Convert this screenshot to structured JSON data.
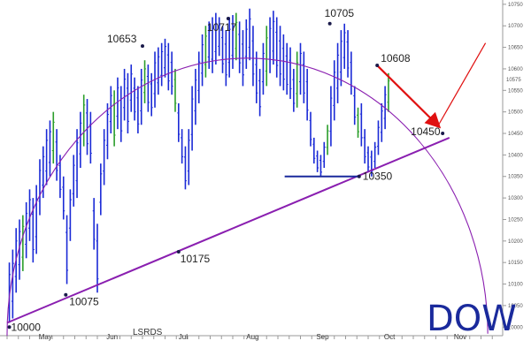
{
  "chart_data": {
    "type": "bar",
    "title": "DOW",
    "source_label": "LSRDS",
    "x_months": [
      "May",
      "Jun",
      "Jul",
      "Aug",
      "Sep",
      "Oct",
      "Nov"
    ],
    "ylim": [
      9980,
      10760
    ],
    "y_ticks": [
      10000,
      10050,
      10100,
      10150,
      10200,
      10250,
      10300,
      10350,
      10400,
      10450,
      10500,
      10550,
      10600,
      10650,
      10700,
      10750
    ],
    "last_price": 10575,
    "annotations": [
      {
        "text": "10000",
        "day": 1,
        "value": 10000
      },
      {
        "text": "10075",
        "day": 26,
        "value": 10075
      },
      {
        "text": "10175",
        "day": 76,
        "value": 10175
      },
      {
        "text": "10653",
        "day": 60,
        "value": 10653
      },
      {
        "text": "10717",
        "day": 98,
        "value": 10717
      },
      {
        "text": "10705",
        "day": 143,
        "value": 10705
      },
      {
        "text": "10608",
        "day": 164,
        "value": 10608
      },
      {
        "text": "10450",
        "day": 193,
        "value": 10450
      },
      {
        "text": "10350",
        "day": 156,
        "value": 10350
      }
    ],
    "support_trendline": {
      "from": {
        "day": 0,
        "value": 10010
      },
      "to": {
        "day": 196,
        "value": 10440
      }
    },
    "horizontal_support": {
      "from_day": 123,
      "to_day": 156,
      "value": 10350
    },
    "arc": {
      "start": {
        "day": 0,
        "value": 10185
      },
      "top": {
        "day": 104,
        "value": 10748
      },
      "end": {
        "day": 213,
        "value": 10190
      }
    },
    "projection": [
      {
        "day": 164,
        "value": 10608
      },
      {
        "day": 191,
        "value": 10468
      },
      {
        "day": 212,
        "value": 10660
      }
    ],
    "series": [
      {
        "name": "",
        "values": [
          [
            10010,
            10150
          ],
          [
            10020,
            10180
          ],
          [
            10080,
            10230
          ],
          [
            10110,
            10250
          ],
          [
            10130,
            10260
          ],
          [
            10160,
            10290
          ],
          [
            10200,
            10320
          ],
          [
            10150,
            10300
          ],
          [
            10170,
            10330
          ],
          [
            10260,
            10390
          ],
          [
            10300,
            10420
          ],
          [
            10330,
            10460
          ],
          [
            10350,
            10480
          ],
          [
            10380,
            10500
          ],
          [
            10340,
            10460
          ],
          [
            10300,
            10400
          ],
          [
            10250,
            10350
          ],
          [
            10100,
            10260
          ],
          [
            10200,
            10320
          ],
          [
            10280,
            10400
          ],
          [
            10300,
            10460
          ],
          [
            10370,
            10500
          ],
          [
            10420,
            10540
          ],
          [
            10400,
            10530
          ],
          [
            10380,
            10500
          ],
          [
            10180,
            10300
          ],
          [
            10080,
            10240
          ],
          [
            10260,
            10380
          ],
          [
            10330,
            10460
          ],
          [
            10390,
            10520
          ],
          [
            10450,
            10560
          ],
          [
            10420,
            10550
          ],
          [
            10460,
            10580
          ],
          [
            10430,
            10560
          ],
          [
            10480,
            10600
          ],
          [
            10450,
            10590
          ],
          [
            10500,
            10610
          ],
          [
            10480,
            10580
          ],
          [
            10450,
            10560
          ],
          [
            10470,
            10600
          ],
          [
            10520,
            10620
          ],
          [
            10500,
            10610
          ],
          [
            10490,
            10590
          ],
          [
            10510,
            10640
          ],
          [
            10540,
            10650
          ],
          [
            10560,
            10660
          ],
          [
            10580,
            10670
          ],
          [
            10550,
            10660
          ],
          [
            10540,
            10640
          ],
          [
            10500,
            10600
          ],
          [
            10430,
            10520
          ],
          [
            10380,
            10460
          ],
          [
            10320,
            10420
          ],
          [
            10330,
            10460
          ],
          [
            10410,
            10560
          ],
          [
            10470,
            10600
          ],
          [
            10520,
            10640
          ],
          [
            10560,
            10680
          ],
          [
            10580,
            10700
          ],
          [
            10600,
            10710
          ],
          [
            10590,
            10720
          ],
          [
            10610,
            10730
          ],
          [
            10630,
            10720
          ],
          [
            10590,
            10700
          ],
          [
            10560,
            10690
          ],
          [
            10580,
            10720
          ],
          [
            10600,
            10725
          ],
          [
            10620,
            10730
          ],
          [
            10590,
            10710
          ],
          [
            10560,
            10690
          ],
          [
            10600,
            10715
          ],
          [
            10620,
            10740
          ],
          [
            10560,
            10700
          ],
          [
            10520,
            10640
          ],
          [
            10490,
            10600
          ],
          [
            10540,
            10660
          ],
          [
            10560,
            10700
          ],
          [
            10590,
            10720
          ],
          [
            10610,
            10735
          ],
          [
            10580,
            10720
          ],
          [
            10560,
            10700
          ],
          [
            10550,
            10680
          ],
          [
            10540,
            10660
          ],
          [
            10530,
            10650
          ],
          [
            10500,
            10600
          ],
          [
            10510,
            10640
          ],
          [
            10540,
            10660
          ],
          [
            10520,
            10640
          ],
          [
            10480,
            10600
          ],
          [
            10420,
            10500
          ],
          [
            10380,
            10440
          ],
          [
            10360,
            10410
          ],
          [
            10350,
            10400
          ],
          [
            10370,
            10430
          ],
          [
            10400,
            10470
          ],
          [
            10420,
            10560
          ],
          [
            10480,
            10620
          ],
          [
            10520,
            10660
          ],
          [
            10560,
            10690
          ],
          [
            10600,
            10705
          ],
          [
            10580,
            10690
          ],
          [
            10540,
            10640
          ],
          [
            10470,
            10560
          ],
          [
            10440,
            10510
          ],
          [
            10420,
            10520
          ],
          [
            10380,
            10460
          ],
          [
            10360,
            10420
          ],
          [
            10350,
            10410
          ],
          [
            10370,
            10430
          ],
          [
            10400,
            10480
          ],
          [
            10430,
            10520
          ],
          [
            10460,
            10560
          ],
          [
            10500,
            10590
          ]
        ]
      }
    ]
  }
}
